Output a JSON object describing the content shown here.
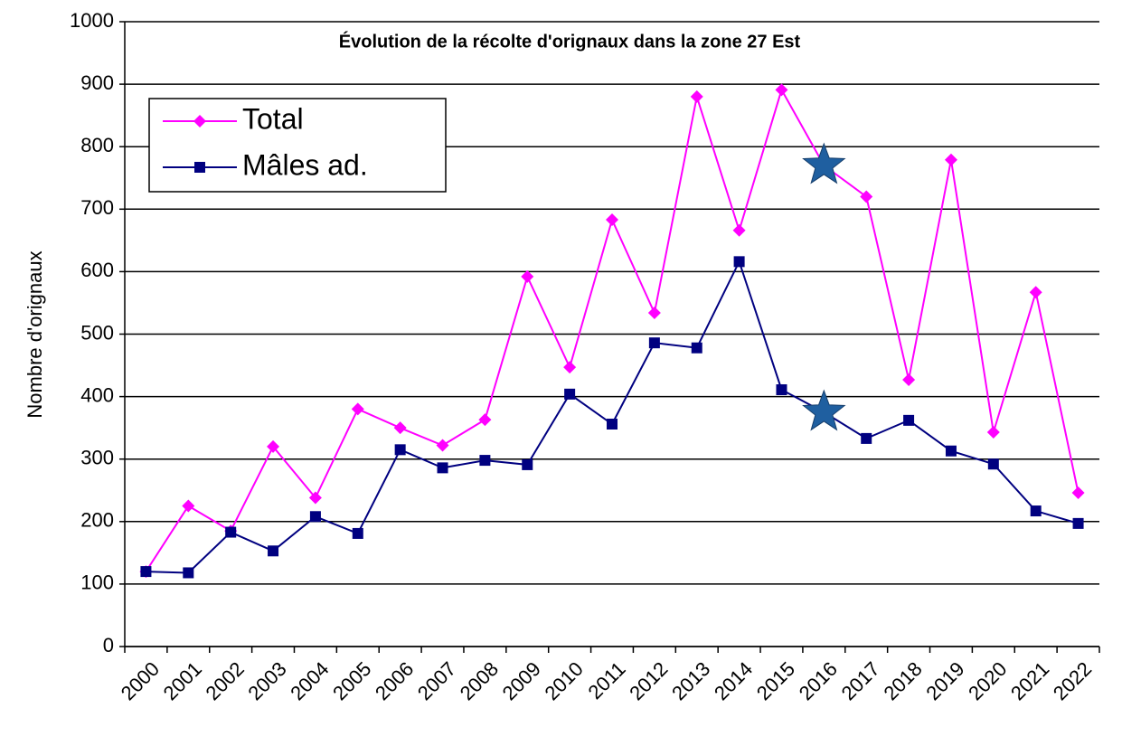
{
  "chart_data": {
    "type": "line",
    "title": "Évolution de la récolte d'orignaux dans la zone 27 Est",
    "y_label": "Nombre d'orignaux",
    "categories": [
      "2000",
      "2001",
      "2002",
      "2003",
      "2004",
      "2005",
      "2006",
      "2007",
      "2008",
      "2009",
      "2010",
      "2011",
      "2012",
      "2013",
      "2014",
      "2015",
      "2016",
      "2017",
      "2018",
      "2019",
      "2020",
      "2021",
      "2022"
    ],
    "series": [
      {
        "name": "Total",
        "color": "#ff00ff",
        "marker": "diamond",
        "values": [
          120,
          225,
          185,
          320,
          238,
          380,
          350,
          322,
          363,
          592,
          447,
          683,
          534,
          880,
          666,
          891,
          770,
          720,
          427,
          779,
          343,
          567,
          246
        ]
      },
      {
        "name": "Mâles ad.",
        "color": "#000080",
        "marker": "square",
        "values": [
          120,
          118,
          183,
          153,
          208,
          181,
          315,
          286,
          298,
          291,
          404,
          356,
          486,
          478,
          616,
          411,
          375,
          333,
          362,
          313,
          292,
          217,
          197
        ]
      }
    ],
    "ylim": [
      0,
      1000
    ],
    "yticks": [
      0,
      100,
      200,
      300,
      400,
      500,
      600,
      700,
      800,
      900,
      1000
    ],
    "grid": true
  }
}
